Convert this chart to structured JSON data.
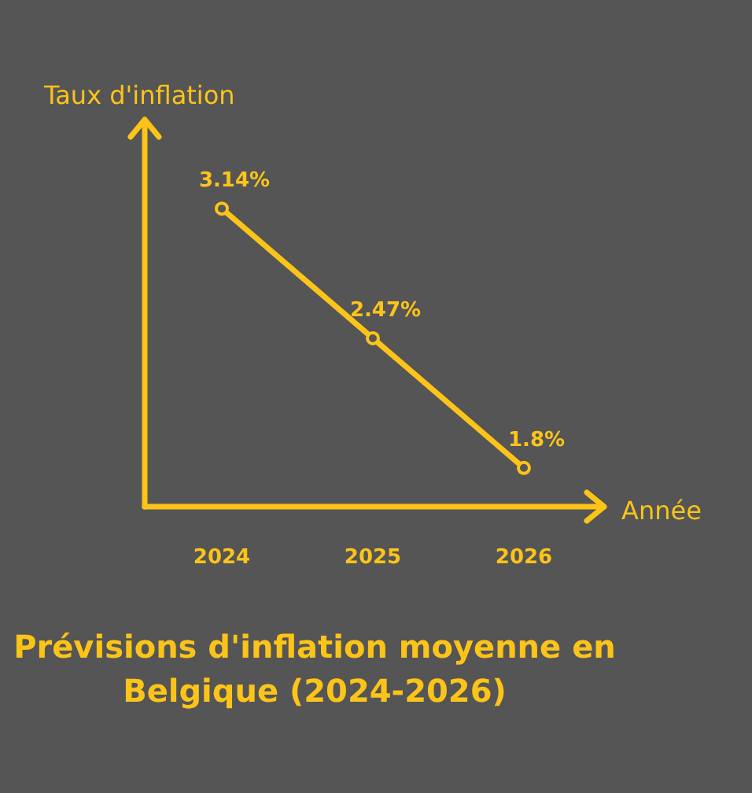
{
  "chart_data": {
    "type": "line",
    "title": "Prévisions d'inflation moyenne en Belgique (2024-2026)",
    "xlabel": "Année",
    "ylabel": "Taux d'inflation",
    "categories": [
      "2024",
      "2025",
      "2026"
    ],
    "series": [
      {
        "color": "#fcc419",
        "values": [
          3.14,
          2.47,
          1.8
        ],
        "value_labels": [
          "3.14%",
          "2.47%",
          "1.8%"
        ]
      }
    ],
    "ylim": [
      1.6,
      3.6
    ],
    "marker": "circle",
    "grid": false,
    "tick_labels": "x"
  }
}
